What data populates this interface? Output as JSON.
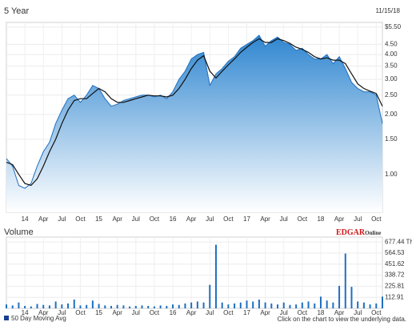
{
  "title": "5 Year",
  "date": "11/15/18",
  "footer": "Click on the chart to view the underlying data.",
  "logo": {
    "main": "EDGAR",
    "sub": "Online"
  },
  "chart_data": [
    {
      "type": "line",
      "log_scale": true,
      "grid": true,
      "x": [
        0,
        1,
        2,
        3,
        4,
        5,
        6,
        7,
        8,
        9,
        10,
        11,
        12,
        13,
        14,
        15,
        16,
        17,
        18,
        19,
        20,
        21,
        22,
        23,
        24,
        25,
        26,
        27,
        28,
        29,
        30,
        31,
        32,
        33,
        34,
        35,
        36,
        37,
        38,
        39,
        40,
        41,
        42,
        43,
        44,
        45,
        46,
        47,
        48,
        49,
        50,
        51,
        52,
        53,
        54,
        55,
        56,
        57,
        58,
        59,
        60,
        61
      ],
      "xlim": [
        0,
        61
      ],
      "xticks": [
        {
          "value": 3,
          "label": "14"
        },
        {
          "value": 6,
          "label": "Apr"
        },
        {
          "value": 9,
          "label": "Jul"
        },
        {
          "value": 12,
          "label": "Oct"
        },
        {
          "value": 15,
          "label": "15"
        },
        {
          "value": 18,
          "label": "Apr"
        },
        {
          "value": 21,
          "label": "Jul"
        },
        {
          "value": 24,
          "label": "Oct"
        },
        {
          "value": 27,
          "label": "16"
        },
        {
          "value": 30,
          "label": "Apr"
        },
        {
          "value": 33,
          "label": "Jul"
        },
        {
          "value": 36,
          "label": "Oct"
        },
        {
          "value": 39,
          "label": "17"
        },
        {
          "value": 42,
          "label": "Apr"
        },
        {
          "value": 45,
          "label": "Jul"
        },
        {
          "value": 48,
          "label": "Oct"
        },
        {
          "value": 51,
          "label": "18"
        },
        {
          "value": 54,
          "label": "Apr"
        },
        {
          "value": 57,
          "label": "Jul"
        },
        {
          "value": 60,
          "label": "Oct"
        }
      ],
      "ylim": [
        0.645,
        5.8
      ],
      "yticks": [
        {
          "value": 1,
          "label": "1.00"
        },
        {
          "value": 1.5,
          "label": "1.50"
        },
        {
          "value": 2,
          "label": "2.00"
        },
        {
          "value": 2.5,
          "label": "2.50"
        },
        {
          "value": 3,
          "label": "3.00"
        },
        {
          "value": 3.5,
          "label": "3.50"
        },
        {
          "value": 4,
          "label": "4.00"
        },
        {
          "value": 4.5,
          "label": "4.50"
        },
        {
          "value": 5.5,
          "label": "$5.50"
        }
      ],
      "series": [
        {
          "color": "#1f6fc0",
          "values": [
            1.2,
            1.1,
            0.88,
            0.85,
            0.9,
            1.1,
            1.3,
            1.45,
            1.8,
            2.1,
            2.4,
            2.5,
            2.3,
            2.5,
            2.8,
            2.7,
            2.4,
            2.2,
            2.25,
            2.35,
            2.4,
            2.45,
            2.5,
            2.5,
            2.45,
            2.5,
            2.4,
            2.6,
            3.0,
            3.3,
            3.8,
            4.0,
            4.1,
            2.8,
            3.2,
            3.4,
            3.7,
            3.9,
            4.3,
            4.5,
            4.7,
            5.0,
            4.4,
            4.7,
            4.9,
            4.6,
            4.5,
            4.2,
            4.3,
            4.0,
            3.8,
            3.8,
            4.0,
            3.6,
            3.9,
            3.4,
            2.9,
            2.7,
            2.6,
            2.6,
            2.5,
            1.8
          ]
        },
        {
          "name": "50 Day Moving Avg",
          "color": "#111111",
          "values": [
            1.15,
            1.12,
            1.0,
            0.9,
            0.88,
            0.95,
            1.1,
            1.3,
            1.5,
            1.8,
            2.1,
            2.35,
            2.4,
            2.4,
            2.55,
            2.7,
            2.6,
            2.4,
            2.3,
            2.3,
            2.35,
            2.4,
            2.45,
            2.5,
            2.48,
            2.48,
            2.45,
            2.5,
            2.7,
            3.0,
            3.4,
            3.75,
            3.95,
            3.3,
            3.05,
            3.3,
            3.55,
            3.8,
            4.1,
            4.35,
            4.6,
            4.8,
            4.6,
            4.6,
            4.8,
            4.7,
            4.55,
            4.35,
            4.25,
            4.1,
            3.9,
            3.8,
            3.85,
            3.75,
            3.75,
            3.6,
            3.2,
            2.85,
            2.7,
            2.62,
            2.55,
            2.2
          ]
        }
      ]
    },
    {
      "type": "bar",
      "title": "Volume",
      "grid": true,
      "x": [
        0,
        1,
        2,
        3,
        4,
        5,
        6,
        7,
        8,
        9,
        10,
        11,
        12,
        13,
        14,
        15,
        16,
        17,
        18,
        19,
        20,
        21,
        22,
        23,
        24,
        25,
        26,
        27,
        28,
        29,
        30,
        31,
        32,
        33,
        34,
        35,
        36,
        37,
        38,
        39,
        40,
        41,
        42,
        43,
        44,
        45,
        46,
        47,
        48,
        49,
        50,
        51,
        52,
        53,
        54,
        55,
        56,
        57,
        58,
        59,
        60,
        61
      ],
      "xlim": [
        0,
        61
      ],
      "xticks": [
        {
          "value": 3,
          "label": "14"
        },
        {
          "value": 6,
          "label": "Apr"
        },
        {
          "value": 9,
          "label": "Jul"
        },
        {
          "value": 12,
          "label": "Oct"
        },
        {
          "value": 15,
          "label": "15"
        },
        {
          "value": 18,
          "label": "Apr"
        },
        {
          "value": 21,
          "label": "Jul"
        },
        {
          "value": 24,
          "label": "Oct"
        },
        {
          "value": 27,
          "label": "16"
        },
        {
          "value": 30,
          "label": "Apr"
        },
        {
          "value": 33,
          "label": "Jul"
        },
        {
          "value": 36,
          "label": "Oct"
        },
        {
          "value": 39,
          "label": "17"
        },
        {
          "value": 42,
          "label": "Apr"
        },
        {
          "value": 45,
          "label": "Jul"
        },
        {
          "value": 48,
          "label": "Oct"
        },
        {
          "value": 51,
          "label": "18"
        },
        {
          "value": 54,
          "label": "Apr"
        },
        {
          "value": 57,
          "label": "Jul"
        },
        {
          "value": 60,
          "label": "Oct"
        }
      ],
      "ylim": [
        0,
        728
      ],
      "yticks": [
        {
          "value": 112.91,
          "label": "112.91"
        },
        {
          "value": 225.81,
          "label": "225.81"
        },
        {
          "value": 338.72,
          "label": "338.72"
        },
        {
          "value": 451.62,
          "label": "451.62"
        },
        {
          "value": 564.53,
          "label": "564.53"
        },
        {
          "value": 677.44,
          "label": "677.44 Th"
        }
      ],
      "color": "#1f6fc0",
      "values": [
        40,
        30,
        60,
        25,
        20,
        45,
        35,
        30,
        70,
        40,
        50,
        90,
        30,
        35,
        80,
        45,
        30,
        25,
        35,
        30,
        20,
        25,
        30,
        25,
        20,
        30,
        25,
        40,
        35,
        50,
        60,
        70,
        60,
        240,
        650,
        60,
        40,
        50,
        60,
        80,
        70,
        90,
        60,
        50,
        40,
        60,
        35,
        40,
        60,
        70,
        50,
        120,
        80,
        60,
        230,
        560,
        220,
        70,
        60,
        40,
        50,
        120
      ]
    }
  ]
}
